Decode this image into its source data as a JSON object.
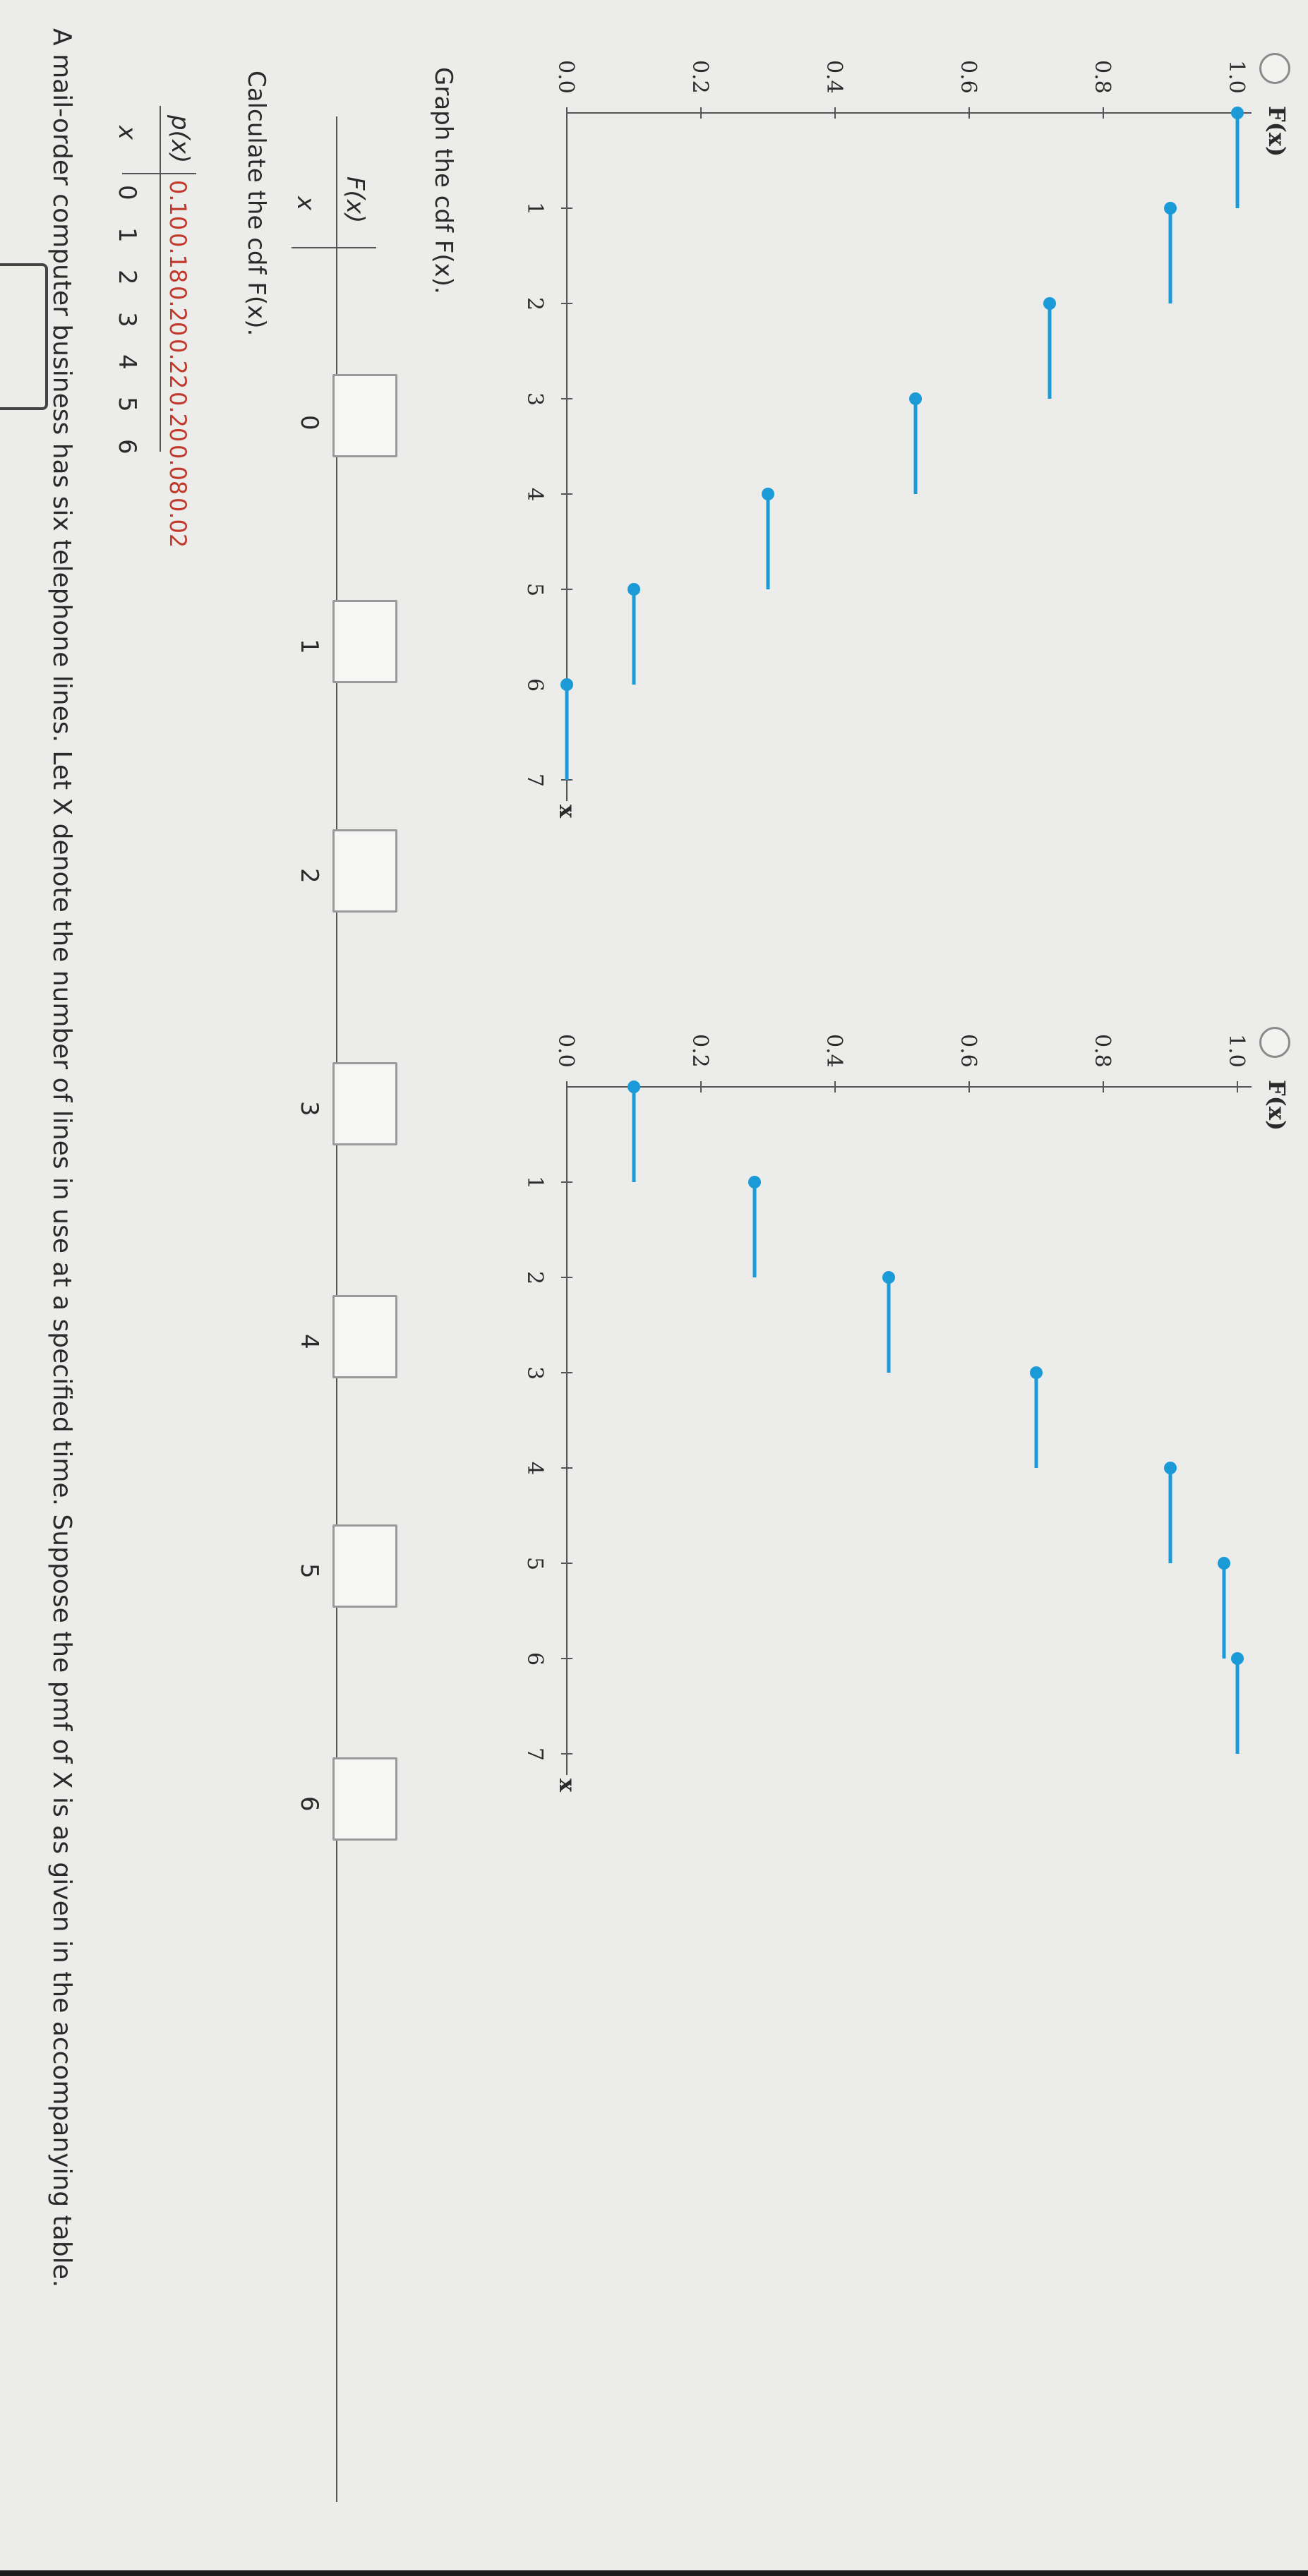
{
  "question": {
    "intro": "A mail-order computer business has six telephone lines. Let X denote the number of lines in use at a specified time. Suppose the pmf of X is as given in the accompanying table.",
    "pmf_x_label": "x",
    "pmf_p_label": "p(x)",
    "pmf_x_values": [
      "0",
      "1",
      "2",
      "3",
      "4",
      "5",
      "6"
    ],
    "pmf_p_values": [
      "0.10",
      "0.18",
      "0.20",
      "0.22",
      "0.20",
      "0.08",
      "0.02"
    ],
    "cdf_prompt": "Calculate the cdf F(x).",
    "cdf_x_label": "x",
    "cdf_F_label": "F(x)",
    "cdf_x_values": [
      "0",
      "1",
      "2",
      "3",
      "4",
      "5",
      "6"
    ],
    "graph_prompt": "Graph the cdf F(x)."
  },
  "chart_data": [
    {
      "type": "step",
      "title": "",
      "ylabel": "F(x)",
      "xlabel": "x",
      "x_ticks": [
        "1",
        "2",
        "3",
        "4",
        "5",
        "6",
        "7"
      ],
      "y_ticks": [
        "0.0",
        "0.2",
        "0.4",
        "0.6",
        "0.8",
        "1.0"
      ],
      "xlim": [
        0,
        7
      ],
      "ylim": [
        0,
        1
      ],
      "steps": [
        {
          "x_start": 0,
          "x_end": 1,
          "y": 1.0
        },
        {
          "x_start": 1,
          "x_end": 2,
          "y": 0.9
        },
        {
          "x_start": 2,
          "x_end": 3,
          "y": 0.72
        },
        {
          "x_start": 3,
          "x_end": 4,
          "y": 0.52
        },
        {
          "x_start": 4,
          "x_end": 5,
          "y": 0.3
        },
        {
          "x_start": 5,
          "x_end": 6,
          "y": 0.1
        },
        {
          "x_start": 6,
          "x_end": 7,
          "y": 0.0
        }
      ],
      "color": "#1a9ad6",
      "option_selected": false
    },
    {
      "type": "step",
      "title": "",
      "ylabel": "F(x)",
      "xlabel": "x",
      "x_ticks": [
        "1",
        "2",
        "3",
        "4",
        "5",
        "6",
        "7"
      ],
      "y_ticks": [
        "0.0",
        "0.2",
        "0.4",
        "0.6",
        "0.8",
        "1.0"
      ],
      "xlim": [
        0,
        7
      ],
      "ylim": [
        0,
        1
      ],
      "steps": [
        {
          "x_start": 0,
          "x_end": 1,
          "y": 0.1
        },
        {
          "x_start": 1,
          "x_end": 2,
          "y": 0.28
        },
        {
          "x_start": 2,
          "x_end": 3,
          "y": 0.48
        },
        {
          "x_start": 3,
          "x_end": 4,
          "y": 0.7
        },
        {
          "x_start": 4,
          "x_end": 5,
          "y": 0.9
        },
        {
          "x_start": 5,
          "x_end": 6,
          "y": 0.98
        },
        {
          "x_start": 6,
          "x_end": 7,
          "y": 1.0
        }
      ],
      "color": "#1a9ad6",
      "option_selected": false
    }
  ]
}
